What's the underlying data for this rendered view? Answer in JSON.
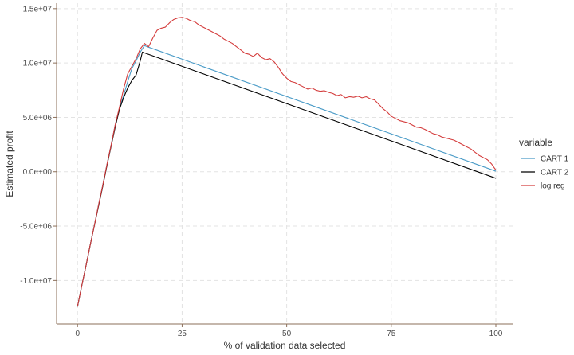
{
  "chart_data": {
    "type": "line",
    "title": "",
    "xlabel": "% of validation data selected",
    "ylabel": "Estimated profit",
    "xlim": [
      -5,
      104
    ],
    "ylim": [
      -14000000,
      15500000
    ],
    "x_ticks": [
      {
        "value": 0,
        "label": "0"
      },
      {
        "value": 25,
        "label": "25"
      },
      {
        "value": 50,
        "label": "50"
      },
      {
        "value": 75,
        "label": "75"
      },
      {
        "value": 100,
        "label": "100"
      }
    ],
    "y_ticks": [
      {
        "value": -10000000,
        "label": "-1.0e+07"
      },
      {
        "value": -5000000,
        "label": "-5.0e+06"
      },
      {
        "value": 0,
        "label": "0.0e+00"
      },
      {
        "value": 5000000,
        "label": "5.0e+06"
      },
      {
        "value": 10000000,
        "label": "1.0e+07"
      },
      {
        "value": 15000000,
        "label": "1.5e+07"
      }
    ],
    "grid": true,
    "legend": {
      "title": "variable",
      "placement": "right"
    },
    "series": [
      {
        "name": "CART 1",
        "color": "#4a9bc7",
        "x": [
          0,
          1,
          2,
          3,
          4,
          5,
          6,
          7,
          8,
          9,
          10,
          11,
          12,
          13,
          14,
          15,
          16,
          17,
          100
        ],
        "y": [
          -12400000,
          -10500000,
          -8700000,
          -6800000,
          -5000000,
          -3100000,
          -1300000,
          600000,
          2400000,
          4300000,
          5800000,
          7000000,
          8300000,
          9500000,
          10200000,
          11000000,
          11600000,
          11450000,
          50000
        ]
      },
      {
        "name": "CART 2",
        "color": "#000000",
        "x": [
          0,
          1,
          2,
          3,
          4,
          5,
          6,
          7,
          8,
          9,
          10,
          11,
          12,
          13,
          14,
          15,
          15.5,
          100
        ],
        "y": [
          -12400000,
          -10500000,
          -8700000,
          -6800000,
          -5000000,
          -3200000,
          -1400000,
          500000,
          2300000,
          4100000,
          5700000,
          6800000,
          7700000,
          8400000,
          8900000,
          10200000,
          11000000,
          -600000
        ]
      },
      {
        "name": "log reg",
        "color": "#d43d3d",
        "x": [
          0,
          1,
          2,
          3,
          4,
          5,
          6,
          7,
          8,
          9,
          10,
          11,
          12,
          13,
          14,
          15,
          16,
          17,
          18,
          19,
          20,
          21,
          22,
          23,
          24,
          25,
          26,
          27,
          28,
          29,
          30,
          31,
          32,
          33,
          34,
          35,
          36,
          37,
          38,
          39,
          40,
          41,
          42,
          43,
          44,
          45,
          46,
          47,
          48,
          49,
          50,
          51,
          52,
          53,
          54,
          55,
          56,
          57,
          58,
          59,
          60,
          61,
          62,
          63,
          64,
          65,
          66,
          67,
          68,
          69,
          70,
          71,
          72,
          73,
          74,
          75,
          76,
          77,
          78,
          79,
          80,
          81,
          82,
          83,
          84,
          85,
          86,
          87,
          88,
          89,
          90,
          91,
          92,
          93,
          94,
          95,
          96,
          97,
          98,
          99,
          100
        ],
        "y": [
          -12400000,
          -10500000,
          -8700000,
          -6800000,
          -5000000,
          -3100000,
          -1300000,
          600000,
          2400000,
          4300000,
          5900000,
          7600000,
          9000000,
          9700000,
          10400000,
          11300000,
          11800000,
          11500000,
          12300000,
          13000000,
          13200000,
          13300000,
          13700000,
          14000000,
          14150000,
          14200000,
          14100000,
          13900000,
          13800000,
          13500000,
          13300000,
          13100000,
          12900000,
          12700000,
          12500000,
          12200000,
          12000000,
          11800000,
          11500000,
          11200000,
          10900000,
          10800000,
          10600000,
          10900000,
          10500000,
          10300000,
          10400000,
          10100000,
          9600000,
          9000000,
          8600000,
          8300000,
          8200000,
          8000000,
          7800000,
          7600000,
          7700000,
          7500000,
          7400000,
          7450000,
          7300000,
          7200000,
          7000000,
          7100000,
          6800000,
          6900000,
          6850000,
          6950000,
          6800000,
          6900000,
          6700000,
          6600000,
          6200000,
          5800000,
          5500000,
          5100000,
          4900000,
          4700000,
          4600000,
          4500000,
          4300000,
          4100000,
          4050000,
          3900000,
          3700000,
          3500000,
          3400000,
          3200000,
          3100000,
          3000000,
          2900000,
          2700000,
          2500000,
          2300000,
          2100000,
          1800000,
          1500000,
          1300000,
          1100000,
          700000,
          150000
        ]
      }
    ]
  }
}
